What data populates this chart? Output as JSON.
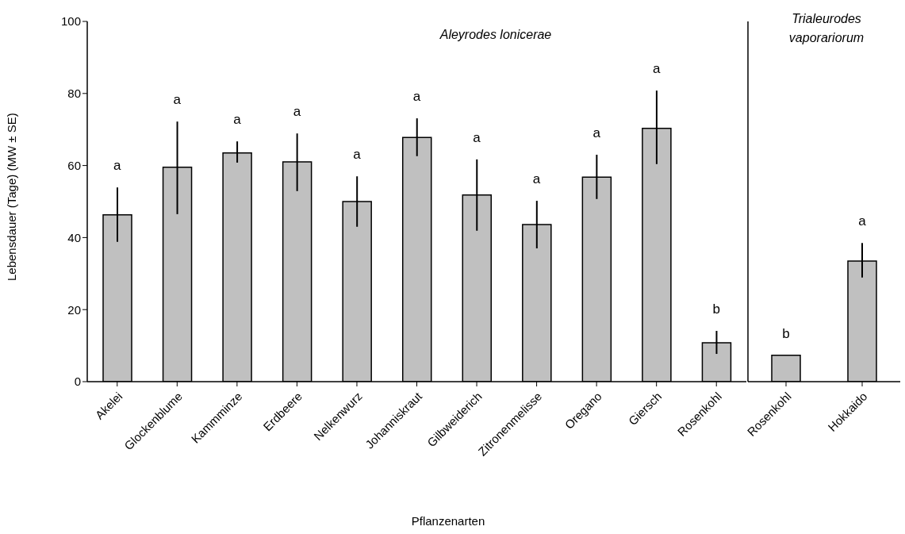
{
  "chart_data": [
    {
      "type": "bar",
      "ylabel": "Lebensdauer (Tage) (MW ± SE)",
      "xlabel": "Pflanzenarten",
      "categories": [
        "Akelei",
        "Glockenblume",
        "Kammminze",
        "Erdbeere",
        "Nelkenwurz",
        "Johanniskraut",
        "Gilbweiderich",
        "Zitronenmelisse",
        "Oregano",
        "Giersch",
        "Rosenkohl"
      ],
      "color": "#c0c0c0",
      "values": [
        46.3,
        59.5,
        63.5,
        61,
        50,
        67.8,
        51.8,
        43.6,
        56.8,
        70.3,
        10.8
      ],
      "errors": [
        [
          38.8,
          53.9
        ],
        [
          46.5,
          72.2
        ],
        [
          60.8,
          66.7
        ],
        [
          52.9,
          68.9
        ],
        [
          43,
          57
        ],
        [
          62.6,
          73.1
        ],
        [
          41.9,
          61.7
        ],
        [
          37,
          50.2
        ],
        [
          50.7,
          63
        ],
        [
          60.4,
          80.8
        ],
        [
          7.7,
          14.1
        ]
      ],
      "ylim": [
        0,
        100
      ],
      "yticks": [
        0,
        20,
        40,
        60,
        80,
        100
      ],
      "annotations": [
        "Aleyrodes lonicerae",
        "a",
        "a",
        "a",
        "a",
        "a",
        "a",
        "a",
        "a",
        "a",
        "a",
        "b"
      ]
    },
    {
      "type": "bar",
      "categories": [
        "Rosenkohl",
        "Hokkaido"
      ],
      "color": "#c0c0c0",
      "values": [
        7.3,
        33.5
      ],
      "errors": [
        null,
        [
          28.9,
          38.5
        ]
      ],
      "ylim": [
        0,
        100
      ],
      "tick_labels": "x",
      "annotations": [
        "Trialeurodes vaporariorum",
        "b",
        "a"
      ]
    }
  ]
}
